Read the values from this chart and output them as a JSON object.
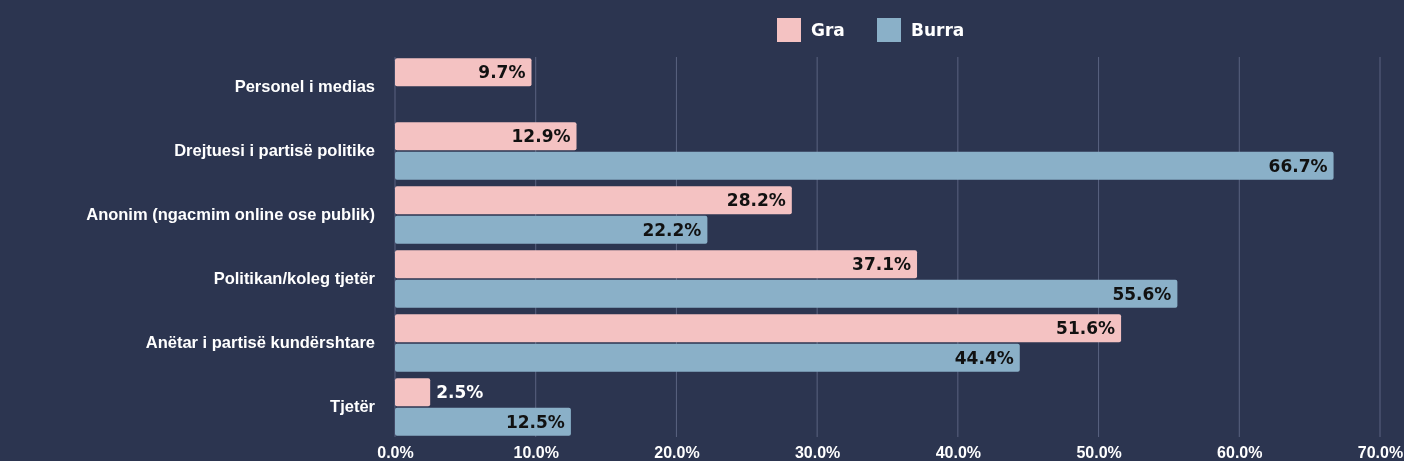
{
  "chart_data": {
    "type": "bar",
    "orientation": "horizontal",
    "categories": [
      "Personel i medias",
      "Drejtuesi i partisë politike",
      "Anonim (ngacmim online ose publik)",
      "Politikan/koleg tjetër",
      "Anëtar i partisë kundërshtare",
      "Tjetër"
    ],
    "series": [
      {
        "name": "Gra",
        "color": "#f4c2c2",
        "values": [
          9.7,
          12.9,
          28.2,
          37.1,
          51.6,
          2.5
        ],
        "value_labels": [
          "9.7%",
          "12.9%",
          "28.2%",
          "37.1%",
          "51.6%",
          "2.5%"
        ]
      },
      {
        "name": "Burra",
        "color": "#8ab0c8",
        "values": [
          null,
          66.7,
          22.2,
          55.6,
          44.4,
          12.5
        ],
        "value_labels": [
          null,
          "66.7%",
          "22.2%",
          "55.6%",
          "44.4%",
          "12.5%"
        ]
      }
    ],
    "xlim": [
      0,
      70
    ],
    "xticks": [
      {
        "value": 0,
        "label": "0.0%"
      },
      {
        "value": 10,
        "label": "10.0%"
      },
      {
        "value": 20,
        "label": "20.0%"
      },
      {
        "value": 30,
        "label": "30.0%"
      },
      {
        "value": 40,
        "label": "40.0%"
      },
      {
        "value": 50,
        "label": "50.0%"
      },
      {
        "value": 60,
        "label": "60.0%"
      },
      {
        "value": 70,
        "label": "70.0%"
      }
    ],
    "grid": "x",
    "legend": "top"
  }
}
